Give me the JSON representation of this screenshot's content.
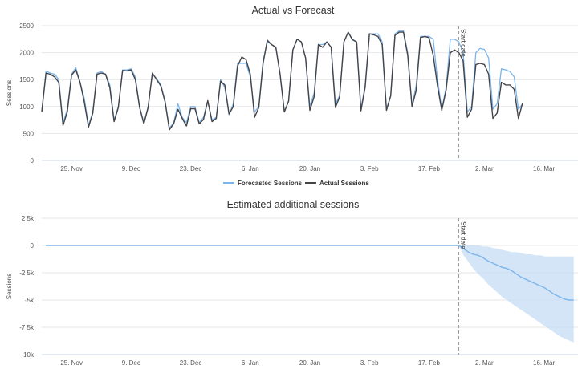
{
  "chart_data": [
    {
      "type": "line",
      "title": "Actual vs Forecast",
      "ylabel": "Sessions",
      "ylim": [
        0,
        2500
      ],
      "yticks": [
        0,
        500,
        1000,
        1500,
        2000,
        2500
      ],
      "x_start": "2018-11-18",
      "x_end": "2019-03-24",
      "xticks": [
        {
          "label": "25. Nov",
          "date": "2018-11-25"
        },
        {
          "label": "9. Dec",
          "date": "2018-12-09"
        },
        {
          "label": "23. Dec",
          "date": "2018-12-23"
        },
        {
          "label": "6. Jan",
          "date": "2019-01-06"
        },
        {
          "label": "20. Jan",
          "date": "2019-01-20"
        },
        {
          "label": "3. Feb",
          "date": "2019-02-03"
        },
        {
          "label": "17. Feb",
          "date": "2019-02-17"
        },
        {
          "label": "2. Mar",
          "date": "2019-03-02"
        },
        {
          "label": "16. Mar",
          "date": "2019-03-16"
        }
      ],
      "start_date": "2019-02-24",
      "start_date_label": "Start date",
      "grid": true,
      "legend_position": "bottom",
      "series": [
        {
          "name": "Forecasted Sessions",
          "color": "#7cb5ec",
          "values": [
            920,
            1660,
            1620,
            1600,
            1500,
            700,
            950,
            1600,
            1720,
            1450,
            1150,
            650,
            900,
            1620,
            1650,
            1600,
            1400,
            750,
            1000,
            1680,
            1680,
            1700,
            1550,
            1000,
            700,
            1000,
            1600,
            1520,
            1400,
            1100,
            600,
            700,
            1050,
            800,
            700,
            1000,
            1000,
            700,
            800,
            1100,
            750,
            800,
            1500,
            1350,
            850,
            1050,
            1800,
            1800,
            1800,
            1550,
            900,
            1000,
            1850,
            2200,
            2150,
            2100,
            1600,
            900,
            1100,
            2050,
            2250,
            2200,
            1900,
            1000,
            1250,
            2150,
            2150,
            2200,
            2100,
            1050,
            1200,
            2200,
            2380,
            2250,
            2200,
            950,
            1400,
            2350,
            2350,
            2350,
            2200,
            950,
            1200,
            2350,
            2400,
            2400,
            2000,
            1000,
            1400,
            2300,
            2300,
            2300,
            2250,
            1500,
            950,
            1350,
            2250,
            2250,
            2200,
            2000,
            900,
            1000,
            2000,
            2080,
            2060,
            1900,
            950,
            1050,
            1700,
            1680,
            1650,
            1550,
            950,
            1050
          ]
        },
        {
          "name": "Actual Sessions",
          "color": "#434348",
          "values": [
            900,
            1620,
            1600,
            1550,
            1450,
            650,
            900,
            1580,
            1680,
            1450,
            1080,
            620,
            880,
            1600,
            1620,
            1600,
            1350,
            720,
            980,
            1670,
            1660,
            1680,
            1500,
            980,
            680,
            980,
            1620,
            1500,
            1380,
            1080,
            570,
            680,
            950,
            780,
            640,
            960,
            960,
            680,
            760,
            1110,
            720,
            780,
            1470,
            1400,
            860,
            1000,
            1750,
            1920,
            1870,
            1600,
            800,
            980,
            1800,
            2230,
            2150,
            2100,
            1600,
            900,
            1100,
            2050,
            2250,
            2200,
            1900,
            930,
            1180,
            2150,
            2100,
            2200,
            2100,
            980,
            1180,
            2200,
            2380,
            2240,
            2200,
            920,
            1360,
            2350,
            2330,
            2300,
            2150,
            930,
            1200,
            2320,
            2380,
            2380,
            1950,
            1000,
            1300,
            2280,
            2300,
            2280,
            1950,
            1380,
            930,
            1300,
            2000,
            2050,
            2000,
            1850,
            800,
            950,
            1780,
            1800,
            1780,
            1600,
            780,
            880,
            1450,
            1400,
            1400,
            1320,
            780,
            1070
          ]
        }
      ]
    },
    {
      "type": "area",
      "title": "Estimated additional sessions",
      "ylabel": "Sessions",
      "ylim": [
        -10000,
        2500
      ],
      "yticks": [
        {
          "value": 2500,
          "label": "2.5k"
        },
        {
          "value": 0,
          "label": "0"
        },
        {
          "value": -2500,
          "label": "-2.5k"
        },
        {
          "value": -5000,
          "label": "-5k"
        },
        {
          "value": -7500,
          "label": "-7.5k"
        },
        {
          "value": -10000,
          "label": "-10k"
        }
      ],
      "x_start": "2018-11-18",
      "x_end": "2019-03-24",
      "start_date": "2019-02-24",
      "start_date_label": "Start date",
      "grid": true,
      "color": "#7cb5ec",
      "band_color": "#c6dcf5",
      "post_period": {
        "estimate": [
          0,
          -300,
          -600,
          -800,
          -900,
          -1100,
          -1400,
          -1600,
          -1800,
          -2000,
          -2100,
          -2300,
          -2600,
          -2900,
          -3100,
          -3300,
          -3500,
          -3700,
          -3900,
          -4200,
          -4500,
          -4700,
          -4900,
          -5000,
          -5000
        ],
        "upper": [
          0,
          0,
          0,
          0,
          0,
          -100,
          -100,
          -200,
          -300,
          -400,
          -500,
          -600,
          -600,
          -700,
          -800,
          -800,
          -900,
          -900,
          -1000,
          -1000,
          -1000,
          -1000,
          -1000,
          -1000,
          -1000
        ],
        "lower": [
          0,
          -900,
          -1500,
          -2100,
          -2600,
          -3000,
          -3500,
          -3900,
          -4300,
          -4700,
          -5000,
          -5300,
          -5600,
          -5900,
          -6200,
          -6500,
          -6800,
          -7100,
          -7400,
          -7700,
          -8000,
          -8300,
          -8500,
          -8700,
          -8900
        ]
      }
    }
  ]
}
